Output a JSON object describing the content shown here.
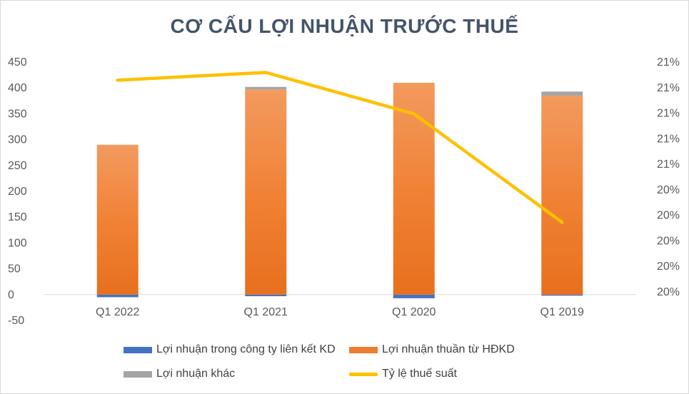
{
  "chart_data": {
    "type": "bar",
    "stacked": true,
    "title": "CƠ CẤU LỢI NHUẬN TRƯỚC THUẾ",
    "categories": [
      "Q1 2022",
      "Q1 2021",
      "Q1 2020",
      "Q1 2019"
    ],
    "series": [
      {
        "name": "Lợi nhuận trong công ty liên kết KD",
        "type": "bar",
        "color": "#4472c4",
        "values": [
          -5,
          -3,
          -7,
          -2
        ]
      },
      {
        "name": "Lợi nhuận thuần từ HĐKD",
        "type": "bar",
        "color": "#ed7d31",
        "values": [
          290,
          397,
          410,
          385
        ]
      },
      {
        "name": "Lợi nhuận khác",
        "type": "bar",
        "color": "#a5a5a5",
        "values": [
          0,
          5,
          0,
          8
        ]
      },
      {
        "name": "Tỷ lệ thuế suất",
        "type": "line",
        "axis": "right",
        "color": "#ffc000",
        "values": [
          20.93,
          20.96,
          20.8,
          20.38
        ]
      }
    ],
    "y_left": {
      "min": -50,
      "max": 450,
      "step": 50,
      "ticks": [
        "450",
        "400",
        "350",
        "300",
        "250",
        "200",
        "150",
        "100",
        "50",
        "0",
        "-50"
      ]
    },
    "y_right": {
      "min": 20.0,
      "max": 21.0,
      "ticks": [
        "21%",
        "21%",
        "21%",
        "21%",
        "21%",
        "20%",
        "20%",
        "20%",
        "20%",
        "20%"
      ]
    },
    "legend_position": "bottom",
    "grid": false
  },
  "legend": {
    "s0": "Lợi nhuận trong công ty liên kết KD",
    "s1": "Lợi nhuận thuần từ HĐKD",
    "s2": "Lợi nhuận khác",
    "s3": "Tỷ lệ thuế suất"
  }
}
